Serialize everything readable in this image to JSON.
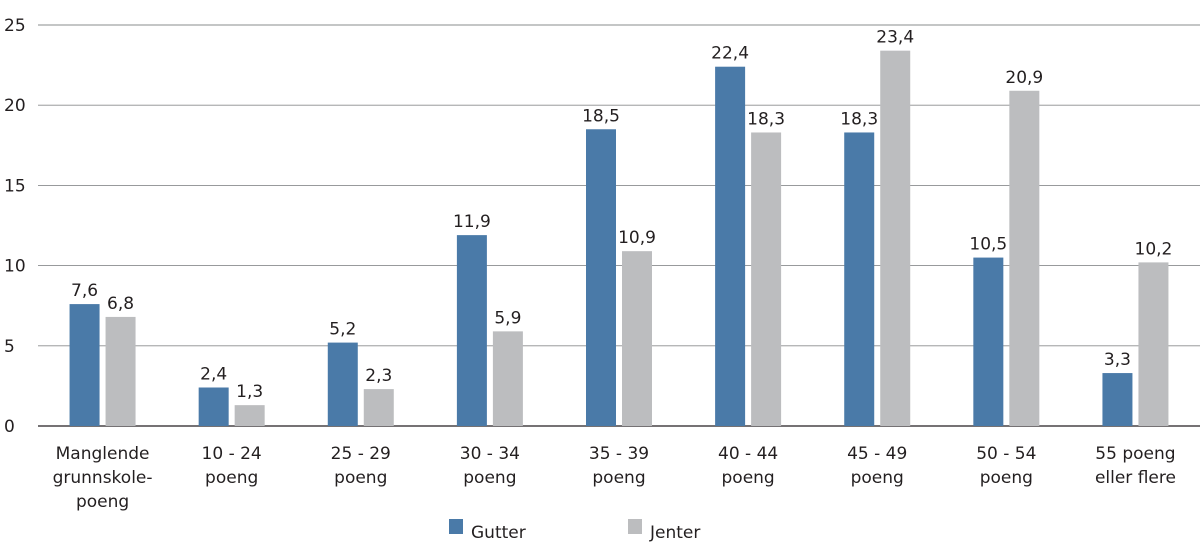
{
  "chart_data": {
    "type": "bar",
    "title": "",
    "xlabel": "",
    "ylabel": "",
    "ylim": [
      0,
      25
    ],
    "yticks": [
      "0",
      "5",
      "10",
      "15",
      "20",
      "25"
    ],
    "grid": true,
    "legend_position": "bottom",
    "categories": [
      [
        "Manglende",
        "grunnskole-",
        "poeng"
      ],
      [
        "10 - 24",
        "poeng"
      ],
      [
        "25 - 29",
        "poeng"
      ],
      [
        "30 - 34",
        "poeng"
      ],
      [
        "35 - 39",
        "poeng"
      ],
      [
        "40 - 44",
        "poeng"
      ],
      [
        "45 - 49",
        "poeng"
      ],
      [
        "50 - 54",
        "poeng"
      ],
      [
        "55 poeng",
        "eller flere"
      ]
    ],
    "series": [
      {
        "name": "Gutter",
        "color": "#4a7aa8",
        "values": [
          7.6,
          2.4,
          5.2,
          11.9,
          18.5,
          22.4,
          18.3,
          10.5,
          3.3
        ],
        "labels": [
          "7,6",
          "2,4",
          "5,2",
          "11,9",
          "18,5",
          "22,4",
          "18,3",
          "10,5",
          "3,3"
        ]
      },
      {
        "name": "Jenter",
        "color": "#bcbdbf",
        "values": [
          6.8,
          1.3,
          2.3,
          5.9,
          10.9,
          18.3,
          23.4,
          20.9,
          10.2
        ],
        "labels": [
          "6,8",
          "1,3",
          "2,3",
          "5,9",
          "10,9",
          "18,3",
          "23,4",
          "20,9",
          "10,2"
        ]
      }
    ]
  }
}
